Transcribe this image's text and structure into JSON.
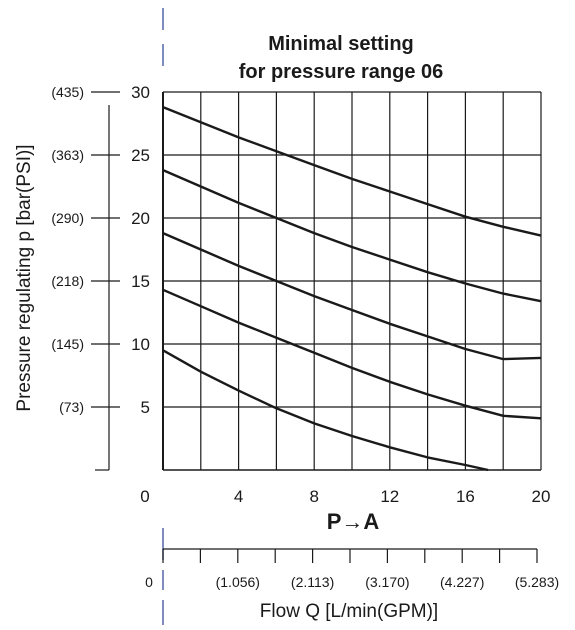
{
  "chart_data": {
    "type": "line",
    "title_line1": "Minimal setting",
    "title_line2": "for pressure range 06",
    "ylabel": "Pressure regulating p [bar(PSI)]",
    "xlabel": "Flow Q [L/min(GPM)]",
    "direction_label": "P→A",
    "xlim": [
      0,
      20
    ],
    "ylim": [
      0,
      30
    ],
    "x_ticks": [
      "0",
      "4",
      "8",
      "12",
      "16",
      "20"
    ],
    "x_tick_values": [
      0,
      4,
      8,
      12,
      16,
      20
    ],
    "y_ticks": [
      "5",
      "10",
      "15",
      "20",
      "25",
      "30"
    ],
    "y_tick_values": [
      5,
      10,
      15,
      20,
      25,
      30
    ],
    "y_ticks_psi": [
      "(73)",
      "(145)",
      "(218)",
      "(290)",
      "(363)",
      "(435)"
    ],
    "x_ticks_gpm": [
      "0",
      "(1.056)",
      "(2.113)",
      "(3.170)",
      "(4.227)",
      "(5.283)"
    ],
    "x_ticks_gpm_values": [
      0,
      4,
      8,
      12,
      16,
      20
    ],
    "grid": true,
    "series": [
      {
        "x": [
          0,
          2,
          4,
          6,
          8,
          10,
          12,
          14,
          16,
          18,
          20
        ],
        "y": [
          28.8,
          27.6,
          26.4,
          25.3,
          24.2,
          23.1,
          22.1,
          21.1,
          20.1,
          19.3,
          18.6
        ]
      },
      {
        "x": [
          0,
          2,
          4,
          6,
          8,
          10,
          12,
          14,
          16,
          18,
          20
        ],
        "y": [
          23.8,
          22.5,
          21.2,
          20.0,
          18.8,
          17.7,
          16.7,
          15.7,
          14.8,
          14.0,
          13.4
        ]
      },
      {
        "x": [
          0,
          2,
          4,
          6,
          8,
          10,
          12,
          14,
          16,
          18,
          20
        ],
        "y": [
          18.8,
          17.5,
          16.2,
          15.0,
          13.8,
          12.7,
          11.6,
          10.6,
          9.6,
          8.8,
          8.9
        ]
      },
      {
        "x": [
          0,
          2,
          4,
          6,
          8,
          10,
          12,
          14,
          16,
          18,
          20
        ],
        "y": [
          14.3,
          13.0,
          11.7,
          10.5,
          9.3,
          8.1,
          7.0,
          6.0,
          5.1,
          4.3,
          4.1
        ]
      },
      {
        "x": [
          0,
          2,
          4,
          6,
          8,
          10,
          12,
          14,
          16,
          17.2
        ],
        "y": [
          9.5,
          7.8,
          6.3,
          4.9,
          3.7,
          2.7,
          1.8,
          1.0,
          0.4,
          0.0
        ]
      }
    ]
  }
}
